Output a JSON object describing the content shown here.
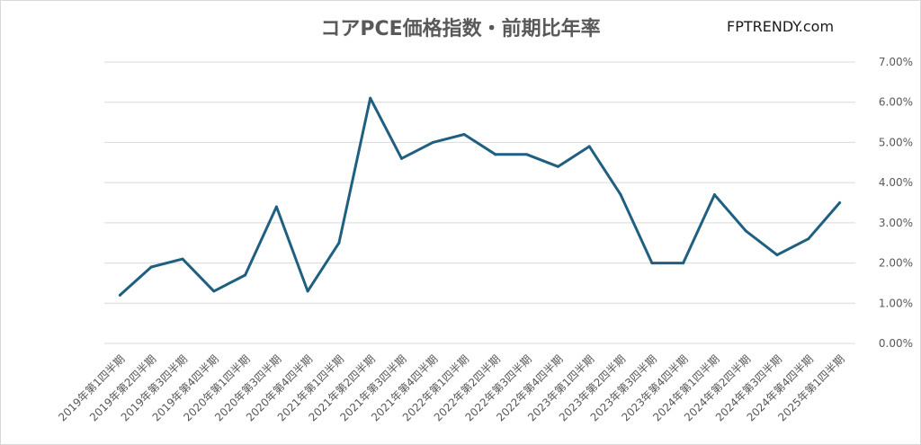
{
  "chart_data": {
    "type": "line",
    "title": "コアPCE価格指数・前期比年率",
    "watermark": "FPTRENDY.com",
    "xlabel": "",
    "ylabel": "",
    "ylim": [
      0,
      7
    ],
    "yticks": [
      "0.00%",
      "1.00%",
      "2.00%",
      "3.00%",
      "4.00%",
      "5.00%",
      "6.00%",
      "7.00%"
    ],
    "grid": true,
    "legend": "none",
    "line_color": "#1f5f80",
    "categories": [
      "2019年第1四半期",
      "2019年第2四半期",
      "2019年第3四半期",
      "2019年第4四半期",
      "2020年第1四半期",
      "2020年第3四半期",
      "2020年第4四半期",
      "2021年第1四半期",
      "2021年第2四半期",
      "2021年第3四半期",
      "2021年第4四半期",
      "2022年第1四半期",
      "2022年第2四半期",
      "2022年第3四半期",
      "2022年第4四半期",
      "2023年第1四半期",
      "2023年第2四半期",
      "2023年第3四半期",
      "2023年第4四半期",
      "2024年第1四半期",
      "2024年第2四半期",
      "2024年第3四半期",
      "2024年第4四半期",
      "2025年第1四半期"
    ],
    "series": [
      {
        "values": [
          1.2,
          1.9,
          2.1,
          1.3,
          1.7,
          3.4,
          1.3,
          2.5,
          6.1,
          4.6,
          5.0,
          5.2,
          4.7,
          4.7,
          4.4,
          4.9,
          3.7,
          2.0,
          2.0,
          3.7,
          2.8,
          2.2,
          2.6,
          3.5
        ]
      }
    ]
  }
}
